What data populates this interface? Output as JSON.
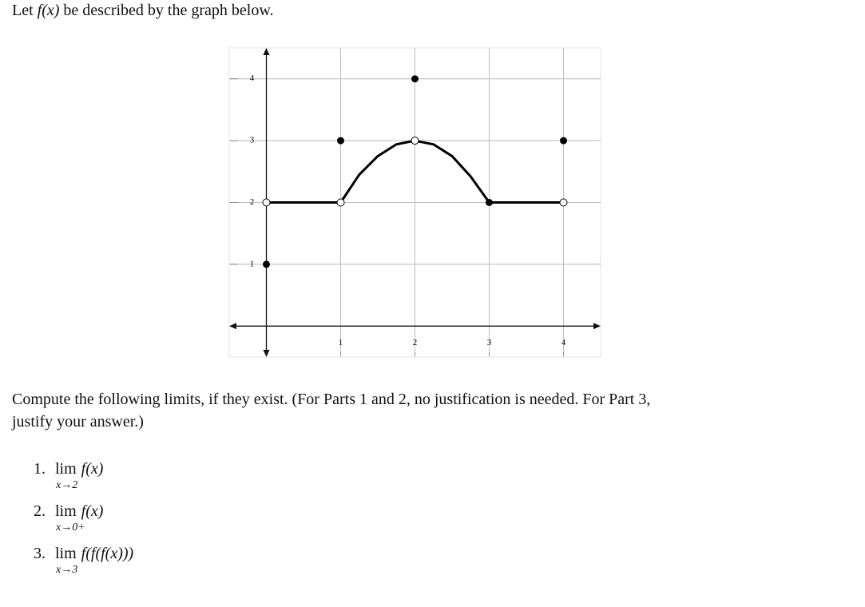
{
  "intro": {
    "before": "Let",
    "math": "f(x)",
    "after": "be described by the graph below."
  },
  "graph": {
    "xlim": [
      -0.5,
      4.5
    ],
    "ylim": [
      -0.5,
      4.5
    ],
    "xticks": [
      1,
      2,
      3,
      4
    ],
    "yticks": [
      1,
      2,
      3,
      4
    ],
    "lines": [
      {
        "x": [
          0,
          1
        ],
        "y": [
          2,
          2
        ]
      },
      {
        "x": [
          1,
          1.25,
          1.5,
          1.75,
          2,
          2.25,
          2.5,
          2.75,
          3
        ],
        "y": [
          2,
          2.45,
          2.75,
          2.94,
          3,
          2.94,
          2.75,
          2.42,
          2
        ]
      },
      {
        "x": [
          3,
          4
        ],
        "y": [
          2,
          2
        ]
      }
    ],
    "open_points": {
      "x": [
        0,
        1,
        2,
        4
      ],
      "y": [
        2,
        2,
        3,
        2
      ]
    },
    "filled_points": {
      "x": [
        0,
        1,
        2,
        3,
        4
      ],
      "y": [
        1,
        3,
        4,
        2,
        3
      ]
    }
  },
  "question": {
    "line1": "Compute the following limits, if they exist. (For Parts 1 and 2, no justification is needed. For Part 3,",
    "line2": "justify your answer.)"
  },
  "items": [
    {
      "number": "1.",
      "lim": "lim",
      "expr": "f(x)",
      "sub": "x→2"
    },
    {
      "number": "2.",
      "lim": "lim",
      "expr": "f(x)",
      "sub": "x→0+"
    },
    {
      "number": "3.",
      "lim": "lim",
      "expr": "f(f(f(x)))",
      "sub": "x→3"
    }
  ]
}
